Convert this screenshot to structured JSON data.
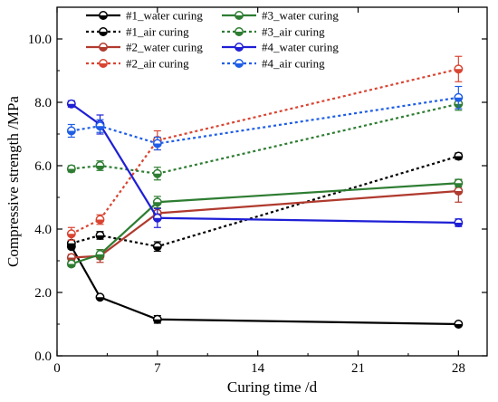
{
  "chart_data": {
    "type": "line",
    "xlabel": "Curing time /d",
    "ylabel": "Compressive strength /MPa",
    "xlim": [
      0,
      30
    ],
    "ylim": [
      0,
      11
    ],
    "xticks": [
      0,
      7,
      14,
      21,
      28
    ],
    "yticks": [
      0,
      2,
      4,
      6,
      8,
      10
    ],
    "x_tick_labels": [
      "0",
      "7",
      "14",
      "21",
      "28"
    ],
    "y_tick_labels": [
      "0.0",
      "2.0",
      "4.0",
      "6.0",
      "8.0",
      "10.0"
    ],
    "grid": false,
    "legend_position": "top-left",
    "x": [
      1,
      3,
      7,
      28
    ],
    "series": [
      {
        "name": "#1_water curing",
        "color": "#000000",
        "dash": "solid",
        "values": [
          3.45,
          1.85,
          1.15,
          1.0
        ],
        "errors": [
          0.08,
          0.06,
          0.12,
          0.05
        ]
      },
      {
        "name": "#1_air curing",
        "color": "#000000",
        "dash": "dotted",
        "values": [
          3.55,
          3.8,
          3.45,
          6.3
        ],
        "errors": [
          0.1,
          0.12,
          0.15,
          0.1
        ]
      },
      {
        "name": "#2_water curing",
        "color": "#b03a2e",
        "dash": "solid",
        "values": [
          3.1,
          3.15,
          4.5,
          5.2
        ],
        "errors": [
          0.1,
          0.2,
          0.15,
          0.35
        ]
      },
      {
        "name": "#2_air curing",
        "color": "#d94532",
        "dash": "dotted",
        "values": [
          3.85,
          4.3,
          6.8,
          9.05
        ],
        "errors": [
          0.2,
          0.15,
          0.3,
          0.4
        ]
      },
      {
        "name": "#3_water curing",
        "color": "#2e7d32",
        "dash": "solid",
        "values": [
          2.9,
          3.2,
          4.85,
          5.45
        ],
        "errors": [
          0.08,
          0.15,
          0.18,
          0.12
        ]
      },
      {
        "name": "#3_air curing",
        "color": "#2e7d32",
        "dash": "dotted",
        "values": [
          5.9,
          6.0,
          5.75,
          7.95
        ],
        "errors": [
          0.1,
          0.15,
          0.2,
          0.2
        ]
      },
      {
        "name": "#4_water curing",
        "color": "#1f1fd6",
        "dash": "solid",
        "values": [
          7.95,
          7.3,
          4.35,
          4.2
        ],
        "errors": [
          0.1,
          0.3,
          0.3,
          0.12
        ]
      },
      {
        "name": "#4_air curing",
        "color": "#1f5ee6",
        "dash": "dotted",
        "values": [
          7.1,
          7.25,
          6.7,
          8.15
        ],
        "errors": [
          0.2,
          0.2,
          0.2,
          0.35
        ]
      }
    ],
    "legend_columns": [
      [
        "#1_water curing",
        "#1_air curing",
        "#2_water curing",
        "#2_air curing"
      ],
      [
        "#3_water curing",
        "#3_air curing",
        "#4_water curing",
        "#4_air curing"
      ]
    ]
  }
}
